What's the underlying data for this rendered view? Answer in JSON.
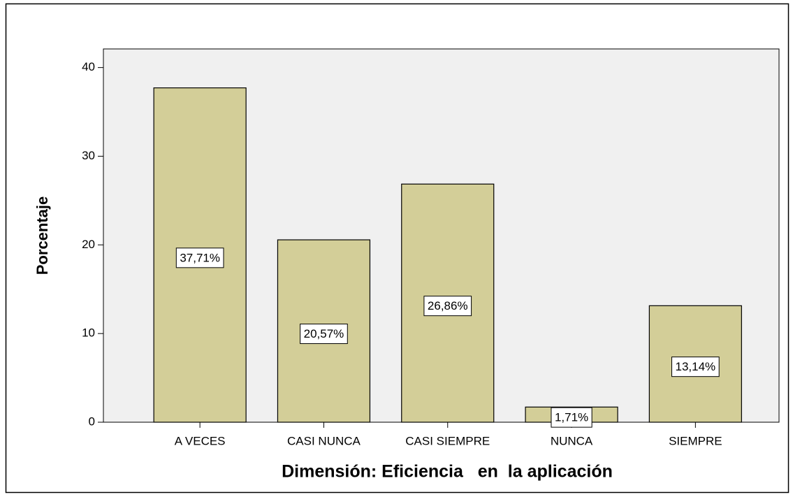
{
  "chart_data": {
    "type": "bar",
    "x_label": "Dimensión: Eficiencia   en  la aplicación",
    "y_label": "Porcentaje",
    "categories": [
      "A VECES",
      "CASI NUNCA",
      "CASI SIEMPRE",
      "NUNCA",
      "SIEMPRE"
    ],
    "values": [
      37.71,
      20.57,
      26.86,
      1.71,
      13.14
    ],
    "value_labels": [
      "37,71%",
      "20,57%",
      "26,86%",
      "1,71%",
      "13,14%"
    ],
    "color": "#d3ce98",
    "ylim": [
      0,
      42.1
    ],
    "yticks": [
      0,
      10,
      20,
      30,
      40
    ],
    "grid": false
  }
}
